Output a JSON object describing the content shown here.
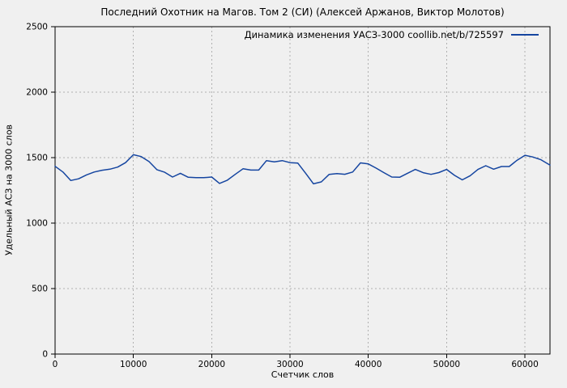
{
  "window": {
    "background": "#f0f0f0"
  },
  "chart_data": {
    "type": "line",
    "title": "Последний Охотник на Магов. Том 2 (СИ) (Алексей Аржанов, Виктор Молотов)",
    "xlabel": "Счетчик слов",
    "ylabel": "Удельный АСЗ на 3000 слов",
    "legend": [
      {
        "label": "Динамика изменения УАСЗ-3000 coollib.net/b/725597",
        "color": "#1545a0"
      }
    ],
    "legend_position": "top-right-inside",
    "grid": true,
    "grid_style": "dotted",
    "xlim": [
      0,
      63200
    ],
    "ylim": [
      0,
      2500
    ],
    "x_ticks": [
      0,
      10000,
      20000,
      30000,
      40000,
      50000,
      60000
    ],
    "y_ticks": [
      0,
      500,
      1000,
      1500,
      2000,
      2500
    ],
    "colors": {
      "line": "#1545a0",
      "grid": "#b0b0b0",
      "axis": "#000000",
      "text": "#000000",
      "background": "#f0f0f0"
    },
    "series": [
      {
        "name": "Динамика изменения УАСЗ-3000",
        "x": [
          0,
          1000,
          2000,
          3000,
          4000,
          5000,
          6000,
          7000,
          8000,
          9000,
          10000,
          11000,
          12000,
          13000,
          14000,
          15000,
          16000,
          17000,
          18000,
          19000,
          20000,
          21000,
          22000,
          23000,
          24000,
          25000,
          26000,
          27000,
          28000,
          29000,
          30000,
          31000,
          32000,
          33000,
          34000,
          35000,
          36000,
          37000,
          38000,
          39000,
          40000,
          41000,
          42000,
          43000,
          44000,
          45000,
          46000,
          47000,
          48000,
          49000,
          50000,
          51000,
          52000,
          53000,
          54000,
          55000,
          56000,
          57000,
          58000,
          59000,
          60000,
          61000,
          62000,
          63000,
          63200
        ],
        "y": [
          1434,
          1390,
          1325,
          1338,
          1368,
          1390,
          1404,
          1412,
          1428,
          1462,
          1522,
          1508,
          1470,
          1408,
          1388,
          1352,
          1380,
          1350,
          1347,
          1347,
          1352,
          1303,
          1328,
          1372,
          1415,
          1405,
          1405,
          1477,
          1467,
          1477,
          1462,
          1458,
          1380,
          1300,
          1315,
          1372,
          1378,
          1373,
          1390,
          1460,
          1452,
          1420,
          1385,
          1352,
          1350,
          1380,
          1410,
          1385,
          1372,
          1386,
          1410,
          1365,
          1330,
          1362,
          1410,
          1438,
          1412,
          1432,
          1432,
          1480,
          1518,
          1505,
          1485,
          1450,
          1443
        ]
      }
    ]
  }
}
